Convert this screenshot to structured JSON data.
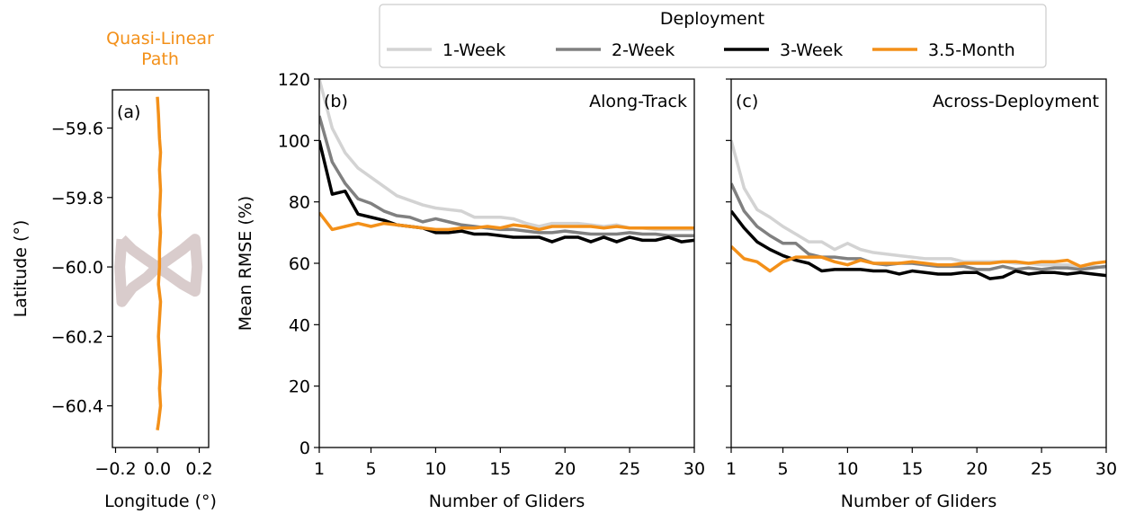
{
  "chart_data": [
    {
      "type": "line",
      "title": "Quasi-Linear Path",
      "title_color": "#f39019",
      "annotations": [
        "(a)"
      ],
      "xlabel": "Longitude (°)",
      "ylabel": "Latitude (°)",
      "xlim": [
        -0.215,
        0.245
      ],
      "ylim": [
        -60.52,
        -59.49
      ],
      "xticks": [
        {
          "value": -0.2,
          "label": "−0.2"
        },
        {
          "value": 0,
          "label": "0.0"
        },
        0.2
      ],
      "yticks": [
        {
          "value": -59.6,
          "label": "−59.6"
        },
        {
          "value": -59.8,
          "label": "−59.8"
        },
        {
          "value": -60.0,
          "label": "−60.0"
        },
        {
          "value": -60.2,
          "label": "−60.2"
        },
        {
          "value": -60.4,
          "label": "−60.4"
        }
      ],
      "series": [
        {
          "color": "#d9cccc",
          "width": 12,
          "x": [
            -0.17,
            -0.12,
            -0.05,
            0.0,
            0.05,
            0.12,
            0.18,
            0.19,
            0.18,
            0.12,
            0.05,
            0.0,
            -0.05,
            -0.12,
            -0.17,
            -0.18,
            -0.17
          ],
          "values": [
            -59.92,
            -59.95,
            -59.98,
            -60.0,
            -60.02,
            -60.05,
            -60.07,
            -60.0,
            -59.92,
            -59.95,
            -59.98,
            -60.0,
            -60.03,
            -60.06,
            -60.1,
            -60.0,
            -59.92
          ]
        },
        {
          "color": "#f39019",
          "width": 3.5,
          "x": [
            0.0,
            0.005,
            0.01,
            0.015,
            0.01,
            0.015,
            0.01,
            0.015,
            0.01,
            0.01,
            0.005,
            0.015,
            0.01,
            0.005,
            0.01,
            0.015,
            0.01,
            0.015,
            0.005,
            0.0
          ],
          "values": [
            -59.51,
            -59.56,
            -59.63,
            -59.67,
            -59.72,
            -59.78,
            -59.85,
            -59.9,
            -59.95,
            -60.0,
            -60.05,
            -60.1,
            -60.15,
            -60.2,
            -60.25,
            -60.3,
            -60.35,
            -60.4,
            -60.45,
            -60.47
          ]
        }
      ]
    },
    {
      "type": "line",
      "annotations": [
        "(b)",
        "Along-Track"
      ],
      "xlabel": "Number of Gliders",
      "ylabel": "Mean RMSE (%)",
      "legend_title": "Deployment",
      "xlim": [
        1,
        30
      ],
      "ylim": [
        0,
        120
      ],
      "xticks": [
        1,
        5,
        10,
        15,
        20,
        25,
        30
      ],
      "yticks": [
        0,
        20,
        40,
        60,
        80,
        100,
        120
      ],
      "x": [
        1,
        2,
        3,
        4,
        5,
        6,
        7,
        8,
        9,
        10,
        11,
        12,
        13,
        14,
        15,
        16,
        17,
        18,
        19,
        20,
        21,
        22,
        23,
        24,
        25,
        26,
        27,
        28,
        29,
        30
      ],
      "series": [
        {
          "name": "1-Week",
          "color": "#d3d3d3",
          "values": [
            120,
            104,
            96,
            91,
            88,
            85,
            82,
            80.5,
            79,
            78,
            77.5,
            77,
            75,
            75,
            75,
            74.5,
            73,
            72,
            73,
            73,
            73,
            72.5,
            72,
            72.5,
            71.5,
            71.5,
            71,
            71,
            71,
            71
          ]
        },
        {
          "name": "2-Week",
          "color": "#808080",
          "values": [
            108,
            93,
            86,
            81,
            79.5,
            77,
            75.5,
            75,
            73.5,
            74.5,
            73.5,
            72.5,
            72,
            71.5,
            71,
            71,
            70.5,
            70,
            70,
            70.5,
            70,
            69.5,
            69.5,
            69.5,
            70,
            69.5,
            69.5,
            69,
            69,
            69
          ]
        },
        {
          "name": "3-Week",
          "color": "#000000",
          "values": [
            100,
            82.5,
            83.5,
            76,
            75,
            74,
            72.5,
            72,
            71.5,
            70,
            70,
            70.5,
            69.5,
            69.5,
            69,
            68.5,
            68.5,
            68.5,
            67,
            68.5,
            68.5,
            67,
            68.5,
            67,
            68.5,
            67.5,
            67.5,
            68.5,
            67,
            67.5
          ]
        },
        {
          "name": "3.5-Month",
          "color": "#f39019",
          "values": [
            76.5,
            71,
            72,
            73,
            72,
            73,
            72.5,
            72,
            71.5,
            71,
            71,
            71.5,
            71.5,
            72,
            71.5,
            72.5,
            72,
            71,
            72,
            72,
            72,
            72,
            71.5,
            72,
            71.5,
            71.5,
            71.5,
            71.5,
            71.5,
            71.5
          ]
        }
      ]
    },
    {
      "type": "line",
      "annotations": [
        "(c)",
        "Across-Deployment"
      ],
      "xlabel": "Number of Gliders",
      "xlim": [
        1,
        30
      ],
      "ylim": [
        0,
        120
      ],
      "xticks": [
        1,
        5,
        10,
        15,
        20,
        25,
        30
      ],
      "yticks": [
        0,
        20,
        40,
        60,
        80,
        100,
        120
      ],
      "ytick_labels": false,
      "x": [
        1,
        2,
        3,
        4,
        5,
        6,
        7,
        8,
        9,
        10,
        11,
        12,
        13,
        14,
        15,
        16,
        17,
        18,
        19,
        20,
        21,
        22,
        23,
        24,
        25,
        26,
        27,
        28,
        29,
        30
      ],
      "series": [
        {
          "color": "#d3d3d3",
          "values": [
            100,
            84.5,
            77.5,
            75,
            72,
            69.5,
            67,
            67,
            64.5,
            66.5,
            64.5,
            63.5,
            63,
            62.5,
            62,
            61.5,
            61.5,
            61.5,
            60.5,
            60.5,
            60.5,
            60.5,
            60,
            60,
            59.5,
            59.5,
            59.5,
            59,
            59,
            58.5
          ]
        },
        {
          "color": "#808080",
          "values": [
            86,
            77,
            72,
            69,
            66.5,
            66.5,
            63,
            62,
            62,
            61.5,
            61.5,
            60,
            59.5,
            60,
            60,
            59.5,
            59,
            59,
            59,
            58,
            58,
            59,
            58,
            58.5,
            58,
            58.5,
            58.5,
            58,
            58.5,
            59
          ]
        },
        {
          "color": "#000000",
          "values": [
            77,
            71.5,
            67,
            64.5,
            62.5,
            61,
            60,
            57.5,
            58,
            58,
            58,
            57.5,
            57.5,
            56.5,
            57.5,
            57,
            56.5,
            56.5,
            57,
            57,
            55,
            55.5,
            57.5,
            56.5,
            57,
            57,
            56.5,
            57,
            56.5,
            56
          ]
        },
        {
          "color": "#f39019",
          "values": [
            65.5,
            61.5,
            60.5,
            57.5,
            60.5,
            62,
            62,
            62,
            60.5,
            59.5,
            61,
            60,
            60,
            60,
            60.5,
            60,
            59.5,
            59.5,
            60,
            60,
            60,
            60.5,
            60.5,
            60,
            60.5,
            60.5,
            61,
            59,
            60,
            60.5
          ]
        }
      ]
    }
  ]
}
